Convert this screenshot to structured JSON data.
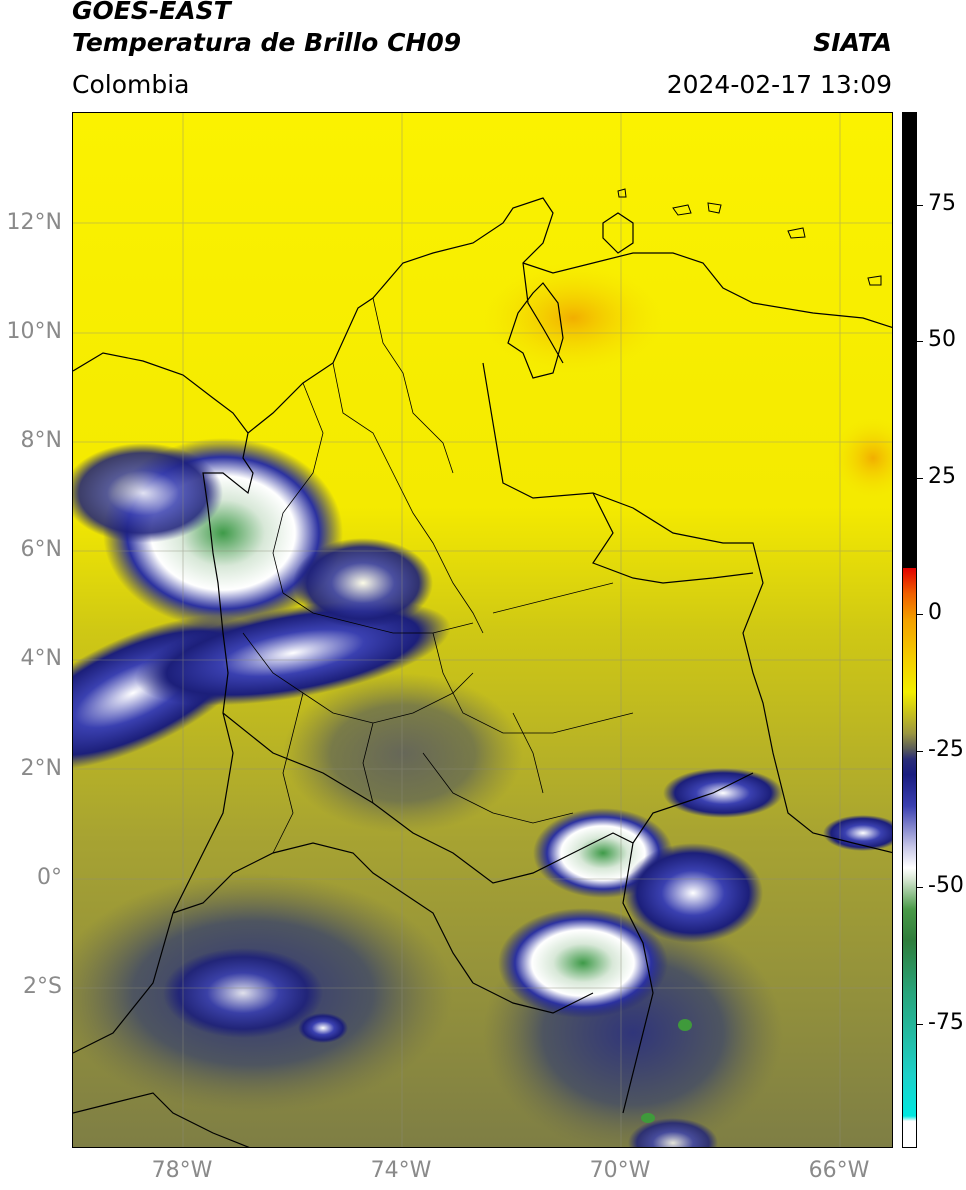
{
  "header": {
    "title_line1": "GOES-EAST",
    "title_line2": "Temperatura de Brillo CH09",
    "region": "Colombia",
    "agency": "SIATA",
    "timestamp": "2024-02-17 13:09"
  },
  "map": {
    "lat_labels": [
      "12°N",
      "10°N",
      "8°N",
      "6°N",
      "4°N",
      "2°N",
      "0°",
      "2°S"
    ],
    "lon_labels": [
      "78°W",
      "74°W",
      "70°W",
      "66°W"
    ],
    "colors": {
      "warm": "#f2ec00",
      "mid": "#b6b22c",
      "cold": "#4f5a4a",
      "deep": "#1c1f7a",
      "white": "#ffffff",
      "green": "#3f9a3b",
      "orange": "#f3b400"
    }
  },
  "colorbar": {
    "labels": [
      "75",
      "50",
      "25",
      "0",
      "-25",
      "-50",
      "-75"
    ]
  }
}
